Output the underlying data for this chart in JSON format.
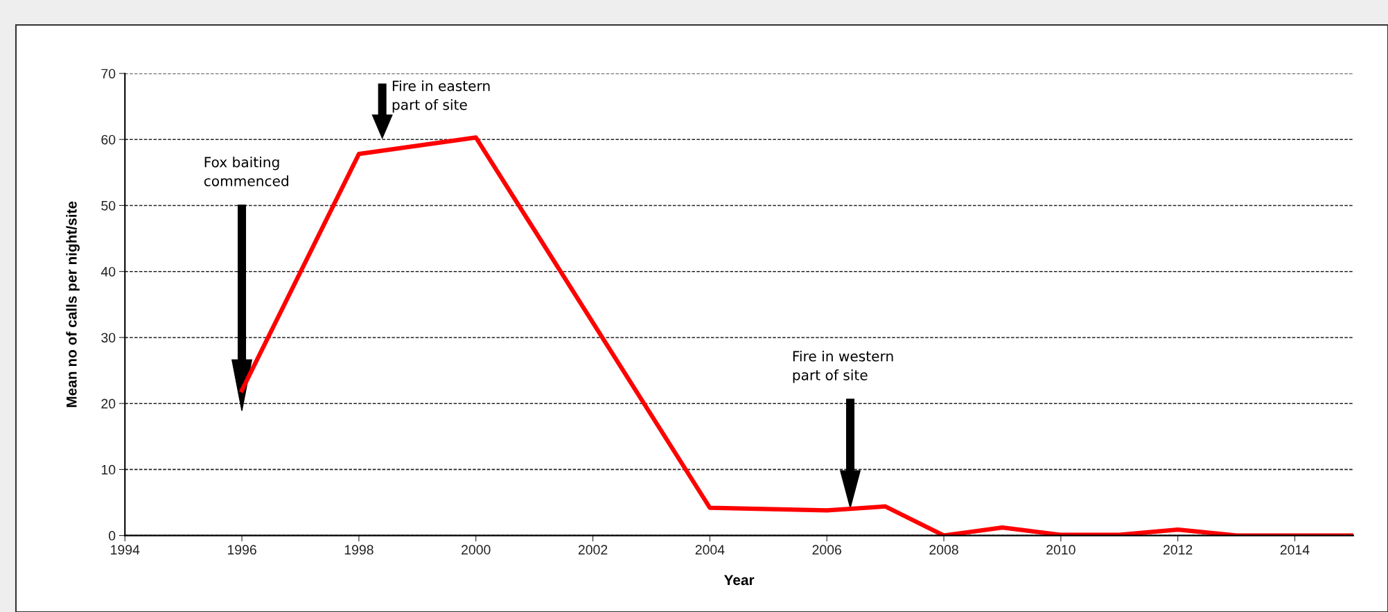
{
  "chart_data": {
    "type": "line",
    "xlabel": "Year",
    "ylabel": "Mean no of calls per night/site",
    "x": [
      1996,
      1998,
      2000,
      2004,
      2006,
      2007,
      2008,
      2009,
      2010,
      2011,
      2012,
      2013,
      2014,
      2015
    ],
    "series": [
      {
        "color": "#ff0000",
        "values": [
          22,
          57.8,
          60.3,
          4.2,
          3.8,
          4.4,
          0,
          1.2,
          0.1,
          0.1,
          0.9,
          0,
          0,
          0
        ]
      }
    ],
    "xlim": [
      1994,
      2015
    ],
    "xticks": [
      1994,
      1996,
      1998,
      2000,
      2002,
      2004,
      2006,
      2008,
      2010,
      2012,
      2014
    ],
    "ylim": [
      0,
      70
    ],
    "yticks": [
      0,
      10,
      20,
      30,
      40,
      50,
      60,
      70
    ],
    "grid": "y",
    "marker": "none",
    "line_style": "solid",
    "legend": false,
    "annotations": [
      "Fox baiting\ncommenced",
      "Fire in eastern\npart of site",
      "Fire in western\npart of site"
    ]
  }
}
